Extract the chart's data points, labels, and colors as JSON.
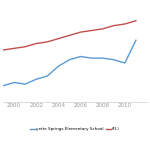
{
  "years": [
    1999,
    2000,
    2001,
    2002,
    2003,
    2004,
    2005,
    2006,
    2007,
    2008,
    2009,
    2010,
    2011
  ],
  "school_values": [
    30,
    32,
    31,
    34,
    36,
    42,
    46,
    48,
    47,
    47,
    46,
    44,
    58
  ],
  "fl_values": [
    52,
    53,
    54,
    56,
    57,
    59,
    61,
    63,
    64,
    65,
    67,
    68,
    70
  ],
  "school_color": "#5b9bd5",
  "fl_color": "#c0504d",
  "school_label": "yette Springs Elementary School",
  "fl_label": "(FL)",
  "xtick_labels": [
    "2000",
    "2002",
    "2004",
    "2006",
    "2008",
    "2010"
  ],
  "xtick_positions": [
    2000,
    2002,
    2004,
    2006,
    2008,
    2010
  ],
  "background_color": "#ffffff",
  "grid_color": "#d8d8d8",
  "ylim": [
    20,
    80
  ],
  "xlim": [
    1999,
    2012
  ]
}
